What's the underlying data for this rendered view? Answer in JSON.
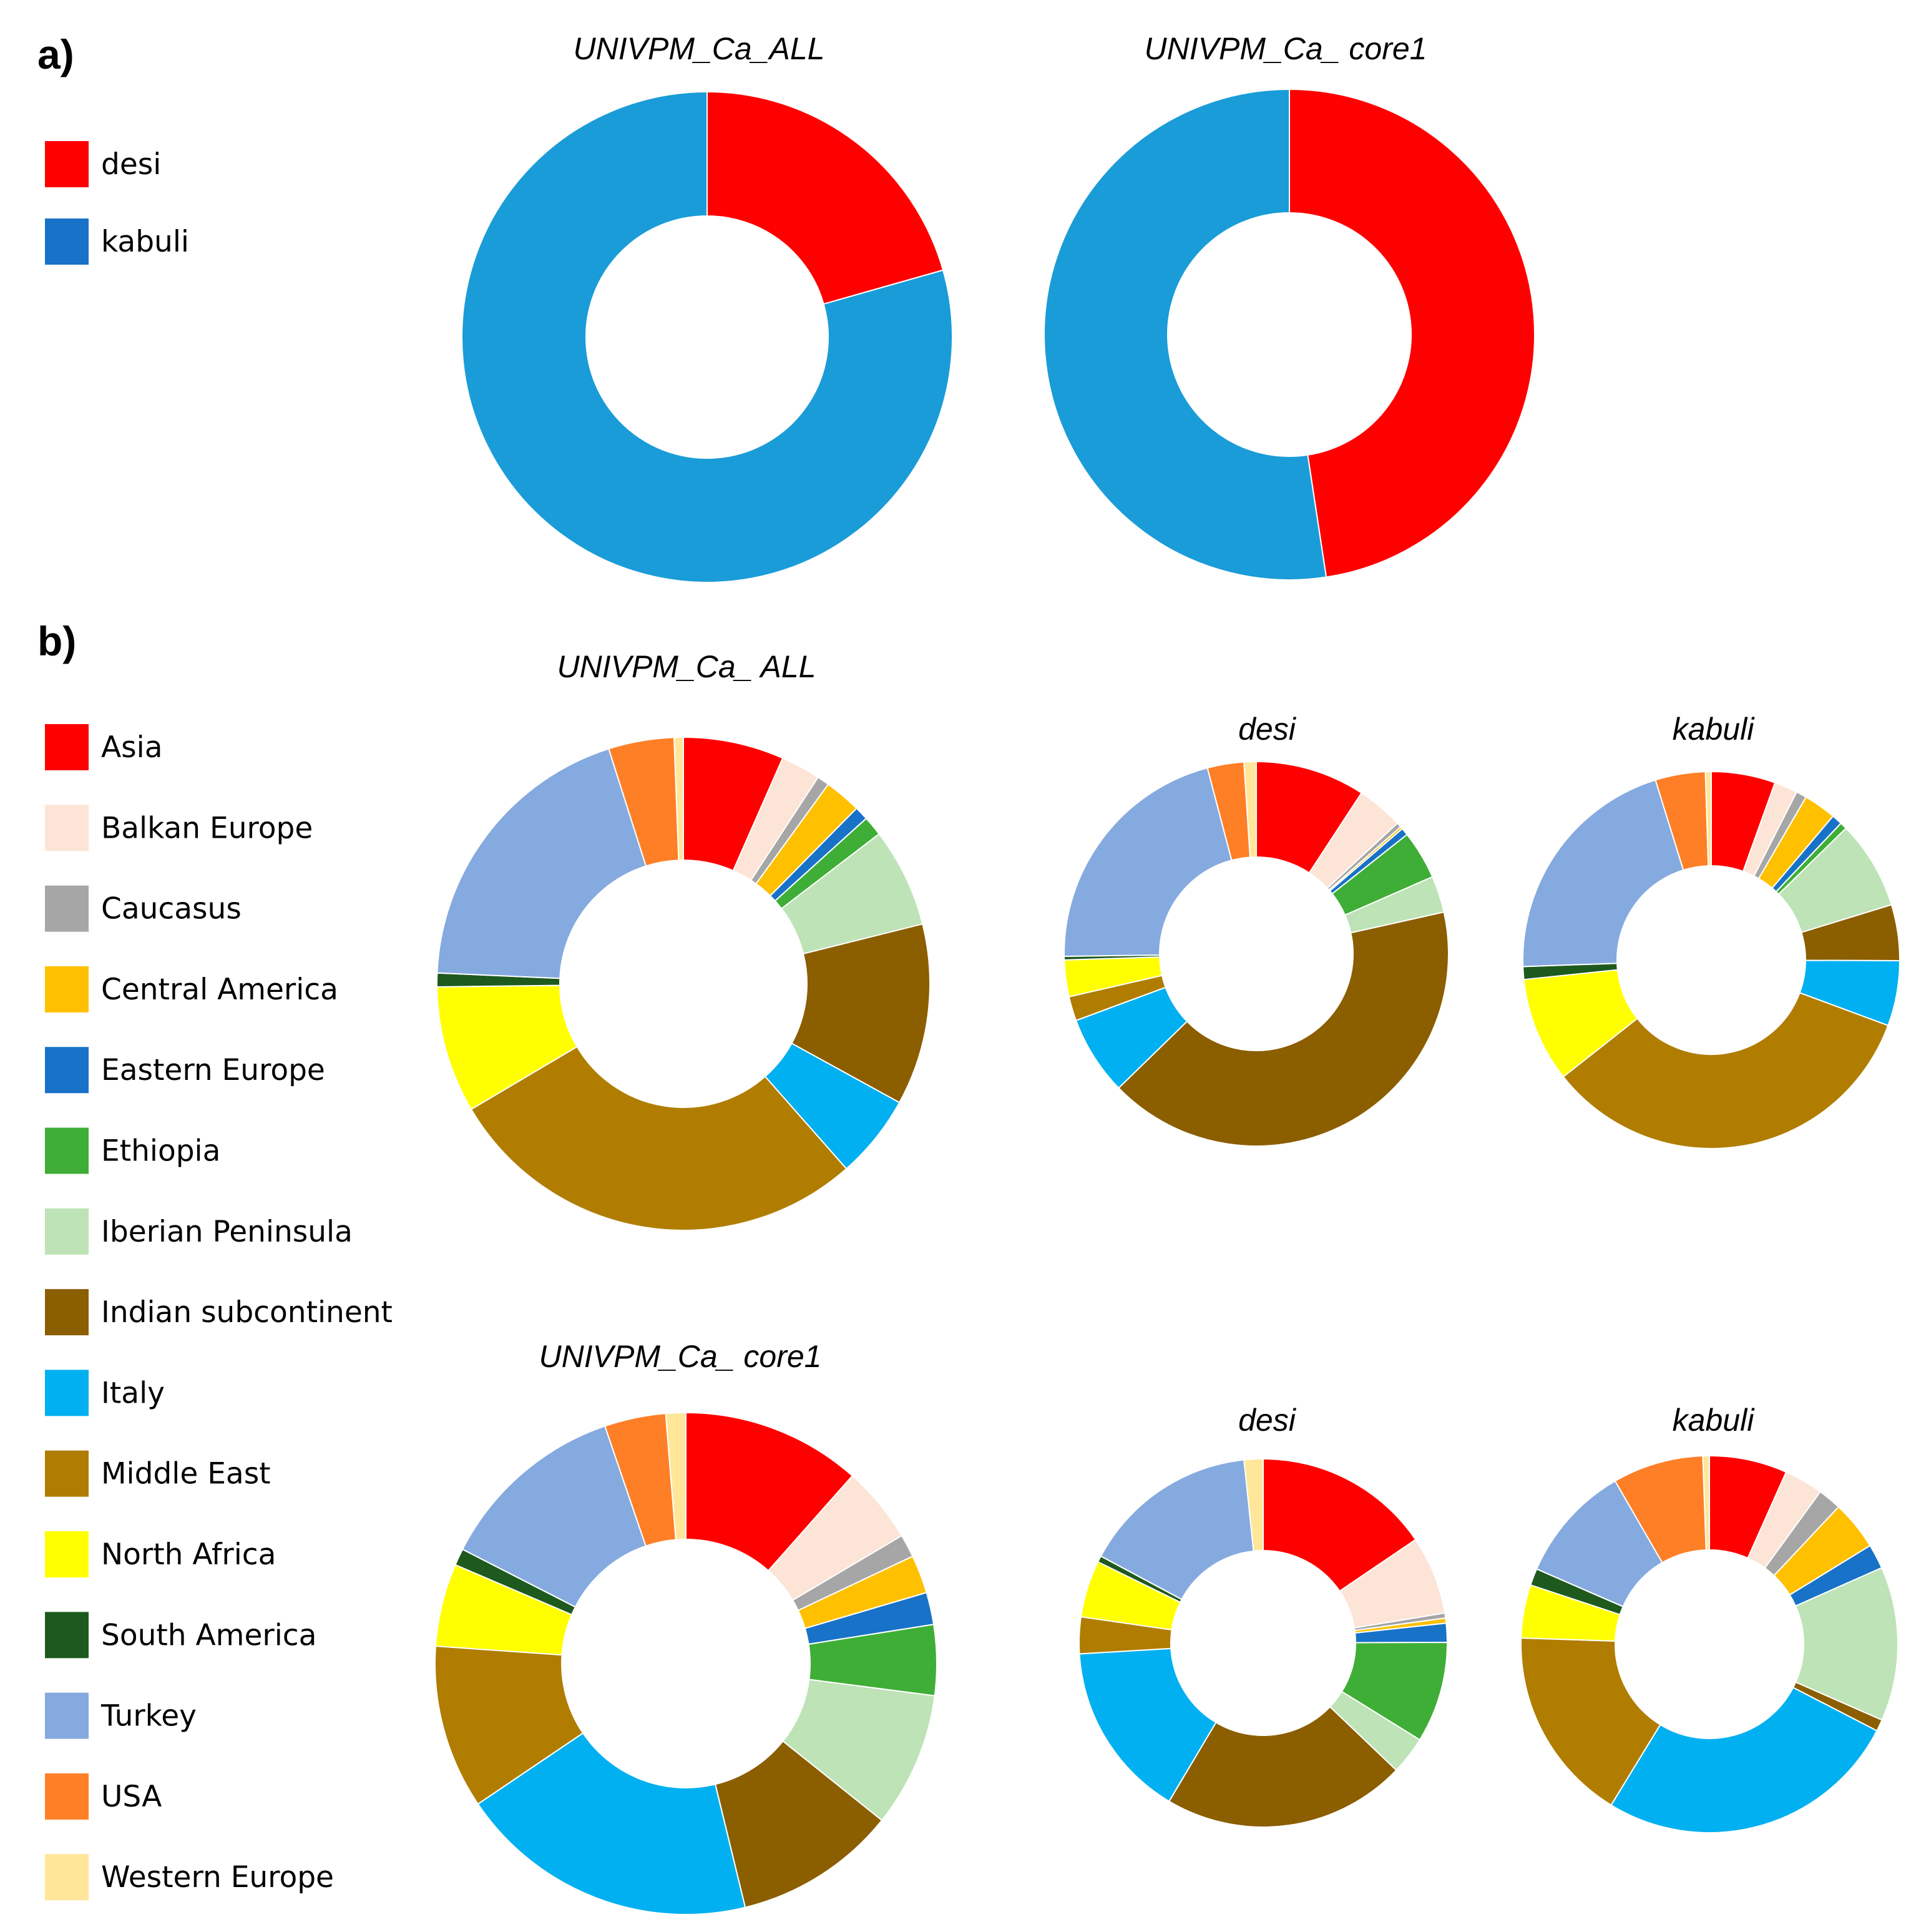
{
  "panels": {
    "a_label": "a)",
    "b_label": "b)"
  },
  "legend_type": [
    {
      "label": "desi",
      "color": "#FF0000"
    },
    {
      "label": "kabuli",
      "color": "#1872C8"
    }
  ],
  "legend_origin": [
    {
      "label": "Asia",
      "color": "#FF0000"
    },
    {
      "label": "Balkan Europe",
      "color": "#FCE4D6"
    },
    {
      "label": "Caucasus",
      "color": "#A6A6A6"
    },
    {
      "label": "Central America",
      "color": "#FFC000"
    },
    {
      "label": "Eastern Europe",
      "color": "#1872C8"
    },
    {
      "label": "Ethiopia",
      "color": "#3FAE36"
    },
    {
      "label": "Iberian Peninsula",
      "color": "#BDE3B6"
    },
    {
      "label": "Indian subcontinent",
      "color": "#8B5E00"
    },
    {
      "label": "Italy",
      "color": "#00B0F0"
    },
    {
      "label": "Middle East",
      "color": "#B07D00"
    },
    {
      "label": "North Africa",
      "color": "#FFFF00"
    },
    {
      "label": "South America",
      "color": "#1E5A1E"
    },
    {
      "label": "Turkey",
      "color": "#85AADF"
    },
    {
      "label": "USA",
      "color": "#FF7F27"
    },
    {
      "label": "Western Europe",
      "color": "#FFE699"
    }
  ],
  "chart_data": [
    {
      "id": "a_all",
      "type": "pie",
      "donut": true,
      "title": "UNIVPM_Ca_ALL",
      "categories": [
        "desi",
        "kabuli"
      ],
      "colors": [
        "#FF0000",
        "#1A9CD8"
      ],
      "values": [
        20.6,
        79.4
      ]
    },
    {
      "id": "a_core1",
      "type": "pie",
      "donut": true,
      "title": "UNIVPM_Ca_ core1",
      "categories": [
        "desi",
        "kabuli"
      ],
      "colors": [
        "#FF0000",
        "#1A9CD8"
      ],
      "values": [
        47.6,
        52.4
      ]
    },
    {
      "id": "b_all",
      "type": "pie",
      "donut": true,
      "title": "UNIVPM_Ca_ ALL",
      "categories": [
        "Asia",
        "Balkan Europe",
        "Caucasus",
        "Central America",
        "Eastern Europe",
        "Ethiopia",
        "Iberian Peninsula",
        "Indian subcontinent",
        "Italy",
        "Middle East",
        "North Africa",
        "South America",
        "Turkey",
        "USA",
        "Western Europe"
      ],
      "values": [
        6.6,
        2.6,
        0.8,
        2.4,
        0.9,
        1.3,
        6.5,
        11.9,
        5.5,
        28.0,
        8.3,
        0.9,
        19.4,
        4.3,
        0.6
      ]
    },
    {
      "id": "b_all_desi",
      "type": "pie",
      "donut": true,
      "title": "desi",
      "categories": [
        "Asia",
        "Balkan Europe",
        "Caucasus",
        "Central America",
        "Eastern Europe",
        "Ethiopia",
        "Iberian Peninsula",
        "Indian subcontinent",
        "Italy",
        "Middle East",
        "North Africa",
        "South America",
        "Turkey",
        "USA",
        "Western Europe"
      ],
      "values": [
        9.0,
        3.8,
        0.4,
        0.2,
        0.6,
        4.0,
        3.0,
        40.2,
        6.5,
        2.0,
        3.0,
        0.3,
        20.6,
        3.0,
        1.0
      ]
    },
    {
      "id": "b_all_kabuli",
      "type": "pie",
      "donut": true,
      "title": "kabuli",
      "categories": [
        "Asia",
        "Balkan Europe",
        "Caucasus",
        "Central America",
        "Eastern Europe",
        "Ethiopia",
        "Iberian Peninsula",
        "Indian subcontinent",
        "Italy",
        "Middle East",
        "North Africa",
        "South America",
        "Turkey",
        "USA",
        "Western Europe"
      ],
      "values": [
        5.5,
        2.0,
        0.9,
        2.8,
        0.9,
        0.6,
        7.6,
        4.8,
        5.6,
        33.8,
        9.0,
        1.1,
        20.8,
        4.3,
        0.5
      ]
    },
    {
      "id": "b_core1",
      "type": "pie",
      "donut": true,
      "title": "UNIVPM_Ca_ core1",
      "categories": [
        "Asia",
        "Balkan Europe",
        "Caucasus",
        "Central America",
        "Eastern Europe",
        "Ethiopia",
        "Iberian Peninsula",
        "Indian subcontinent",
        "Italy",
        "Middle East",
        "North Africa",
        "South America",
        "Turkey",
        "USA",
        "Western Europe"
      ],
      "values": [
        11.7,
        5.0,
        1.5,
        2.5,
        2.1,
        4.6,
        8.8,
        10.6,
        19.6,
        10.7,
        5.4,
        1.1,
        12.4,
        4.0,
        1.3
      ]
    },
    {
      "id": "b_core1_desi",
      "type": "pie",
      "donut": true,
      "title": "desi",
      "categories": [
        "Asia",
        "Balkan Europe",
        "Caucasus",
        "Central America",
        "Eastern Europe",
        "Ethiopia",
        "Iberian Peninsula",
        "Indian subcontinent",
        "Italy",
        "Middle East",
        "North Africa",
        "South America",
        "Turkey",
        "USA",
        "Western Europe"
      ],
      "values": [
        14.0,
        6.2,
        0.4,
        0.4,
        1.5,
        8.0,
        3.0,
        19.3,
        14.0,
        2.9,
        4.5,
        0.5,
        14.0,
        0.0,
        1.5
      ]
    },
    {
      "id": "b_core1_kabuli",
      "type": "pie",
      "donut": true,
      "title": "kabuli",
      "categories": [
        "Asia",
        "Balkan Europe",
        "Caucasus",
        "Central America",
        "Eastern Europe",
        "Ethiopia",
        "Iberian Peninsula",
        "Indian subcontinent",
        "Italy",
        "Middle East",
        "North Africa",
        "South America",
        "Turkey",
        "USA",
        "Western Europe"
      ],
      "values": [
        6.0,
        3.0,
        1.8,
        3.8,
        1.9,
        0.0,
        11.9,
        0.9,
        23.5,
        15.1,
        4.1,
        1.3,
        9.1,
        7.0,
        0.5
      ]
    }
  ]
}
